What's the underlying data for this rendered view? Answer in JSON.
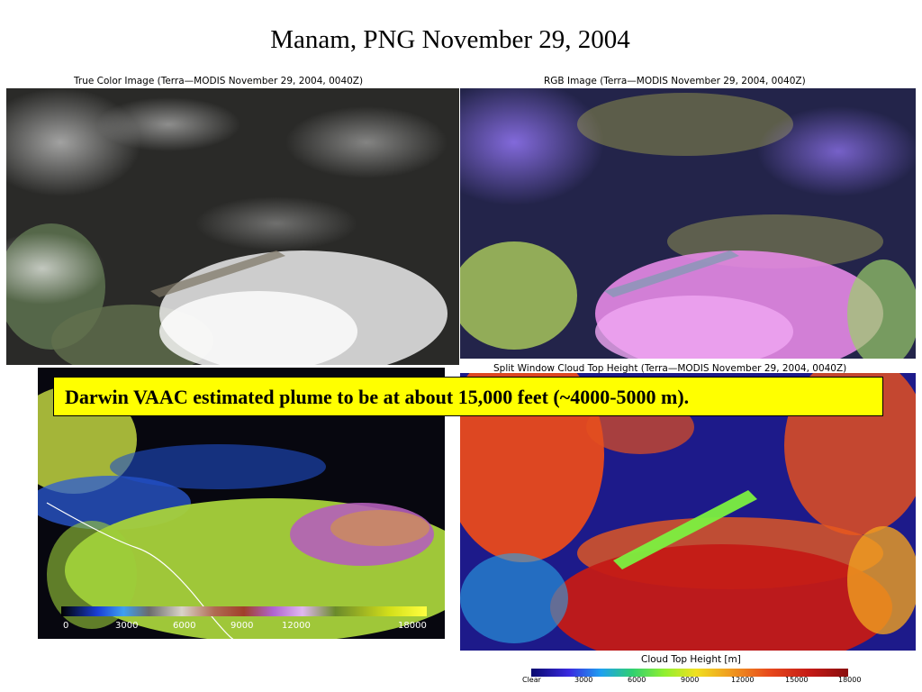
{
  "title": "Manam, PNG November 29, 2004",
  "panels": {
    "true_color_caption": "True Color Image (Terra—MODIS November 29, 2004, 0040Z)",
    "rgb_caption": "RGB Image (Terra—MODIS November 29, 2004, 0040Z)",
    "split_caption": "Split Window Cloud Top Height (Terra—MODIS November 29, 2004, 0040Z)"
  },
  "callout": "Darwin VAAC estimated plume to be at about 15,000 feet (~4000-5000 m).",
  "scale_left": {
    "ticks": [
      "0",
      "3000",
      "6000",
      "9000",
      "12000",
      "18000"
    ]
  },
  "scale_right": {
    "title": "Cloud Top Height [m]",
    "ticks": [
      "Clear",
      "3000",
      "6000",
      "9000",
      "12000",
      "15000",
      "18000"
    ]
  },
  "colors": {
    "callout_bg": "#ffff00"
  }
}
